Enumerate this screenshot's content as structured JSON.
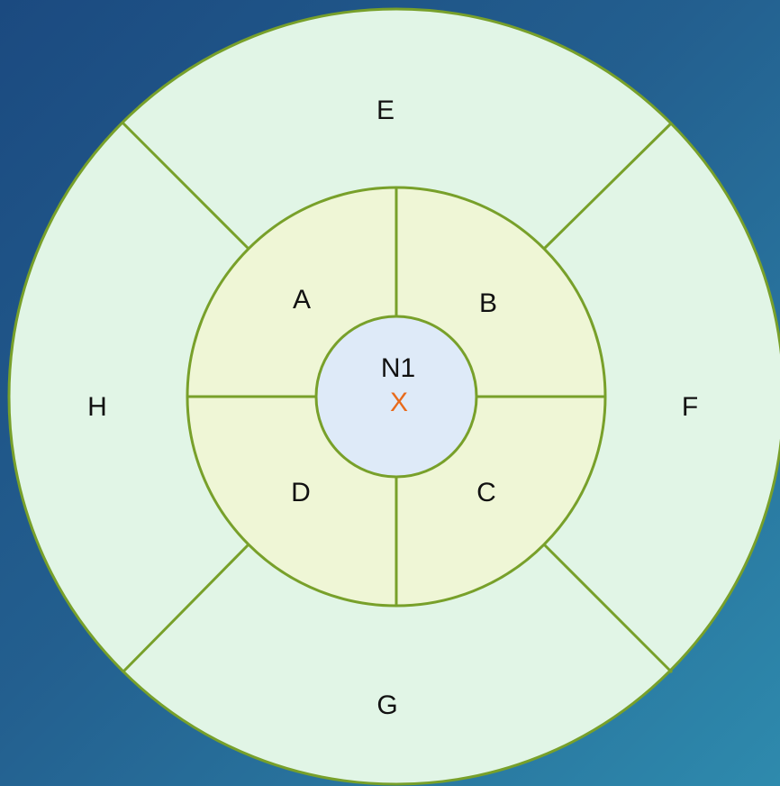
{
  "diagram": {
    "outer_ring": {
      "top": "E",
      "right": "F",
      "bottom": "G",
      "left": "H"
    },
    "inner_ring": {
      "top_left": "A",
      "top_right": "B",
      "bottom_right": "C",
      "bottom_left": "D"
    },
    "center": {
      "label": "N1",
      "mark": "X"
    }
  },
  "colors": {
    "outer_fill": "#e1f5e6",
    "inner_fill": "#eff6d6",
    "center_fill": "#deeaf8",
    "stroke": "#78a02a",
    "mark": "#e86b1c",
    "text": "#111111"
  }
}
